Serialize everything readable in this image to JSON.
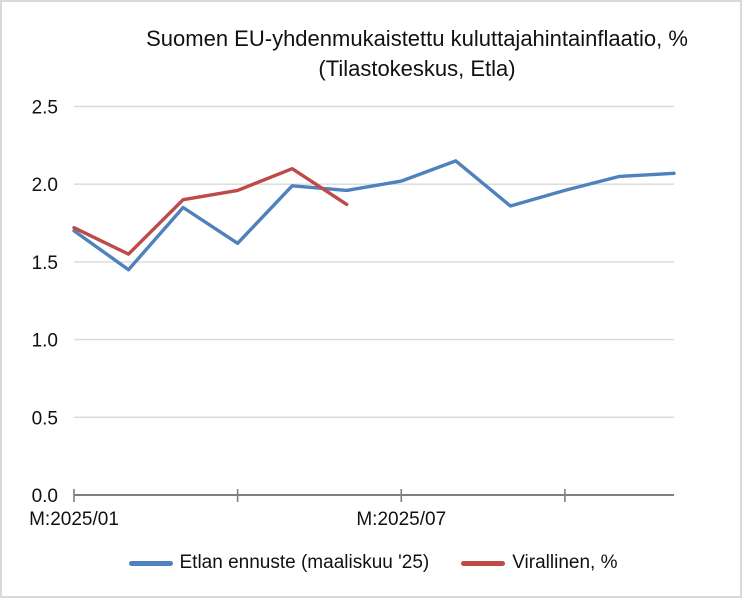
{
  "title": {
    "line1": "Suomen EU-yhdenmukaistettu kuluttajahintainflaatio, %",
    "line2": "(Tilastokeskus, Etla)"
  },
  "chart_data": {
    "type": "line",
    "title": "Suomen EU-yhdenmukaistettu kuluttajahintainflaatio, % (Tilastokeskus, Etla)",
    "xlabel": "",
    "ylabel": "",
    "ylim": [
      0.0,
      2.5
    ],
    "yticks": [
      0.0,
      0.5,
      1.0,
      1.5,
      2.0,
      2.5
    ],
    "ytick_labels": [
      "0.0",
      "0.5",
      "1.0",
      "1.5",
      "2.0",
      "2.5"
    ],
    "x_unit": "month",
    "x_point_count": 12,
    "x_axis": {
      "tick_indices": [
        0,
        3,
        6,
        9
      ],
      "labels": [
        {
          "index": 0,
          "text": "M:2025/01"
        },
        {
          "index": 6,
          "text": "M:2025/07"
        }
      ]
    },
    "grid": true,
    "legend_position": "bottom",
    "series": [
      {
        "name": "Etlan ennuste (maaliskuu '25)",
        "color": "#4F81BD",
        "values": [
          1.7,
          1.45,
          1.85,
          1.62,
          1.99,
          1.96,
          2.02,
          2.15,
          1.86,
          1.96,
          2.05,
          2.07
        ]
      },
      {
        "name": "Virallinen, %",
        "color": "#BE4B48",
        "values": [
          1.72,
          1.55,
          1.9,
          1.96,
          2.1,
          1.87
        ]
      }
    ]
  },
  "axes_style": {
    "gridline_color": "#D9D9D9",
    "axis_color": "#7F7F7F",
    "label_color": "#111111"
  }
}
